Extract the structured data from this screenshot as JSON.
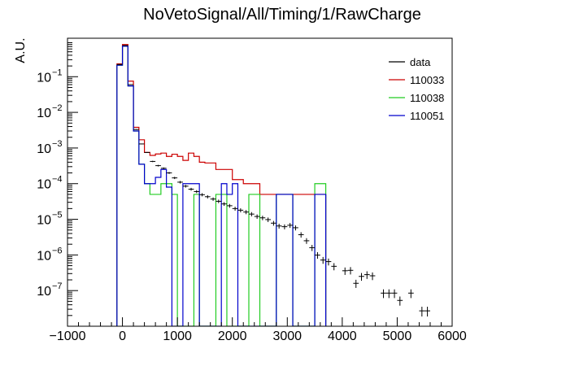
{
  "chart_data": {
    "type": "histogram",
    "title": "NoVetoSignal/All/Timing/1/RawCharge",
    "xlabel": "",
    "ylabel": "A.U.",
    "xlim": [
      -1000,
      6000
    ],
    "ylim": [
      1e-08,
      1.2
    ],
    "y_scale": "log",
    "x_ticks": [
      -1000,
      0,
      1000,
      2000,
      3000,
      4000,
      5000,
      6000
    ],
    "x_tick_labels": [
      "−1000",
      "0",
      "1000",
      "2000",
      "3000",
      "4000",
      "5000",
      "6000"
    ],
    "y_ticks": [
      1e-07,
      1e-06,
      1e-05,
      0.0001,
      0.001,
      0.01,
      0.1
    ],
    "y_tick_labels": [
      {
        "base": "10",
        "exp": "−7"
      },
      {
        "base": "10",
        "exp": "−6"
      },
      {
        "base": "10",
        "exp": "−5"
      },
      {
        "base": "10",
        "exp": "−4"
      },
      {
        "base": "10",
        "exp": "−3"
      },
      {
        "base": "10",
        "exp": "−2"
      },
      {
        "base": "10",
        "exp": "−1"
      }
    ],
    "grid": false,
    "legend_position": "top-right",
    "series": [
      {
        "name": "data",
        "color": "#000000",
        "style": "errorbar",
        "bin_width": 100,
        "points": [
          [
            -50,
            0.22
          ],
          [
            50,
            0.75
          ],
          [
            150,
            0.06
          ],
          [
            250,
            0.0033
          ],
          [
            350,
            0.0013
          ],
          [
            450,
            0.00075
          ],
          [
            550,
            0.00042
          ],
          [
            650,
            0.00032
          ],
          [
            750,
            0.00027
          ],
          [
            850,
            0.0002
          ],
          [
            950,
            0.000145
          ],
          [
            1050,
            0.00011
          ],
          [
            1150,
            8.5e-05
          ],
          [
            1250,
            7e-05
          ],
          [
            1350,
            6e-05
          ],
          [
            1450,
            4.9e-05
          ],
          [
            1550,
            4.3e-05
          ],
          [
            1650,
            3.7e-05
          ],
          [
            1750,
            3.2e-05
          ],
          [
            1850,
            2.7e-05
          ],
          [
            1950,
            2.4e-05
          ],
          [
            2050,
            2e-05
          ],
          [
            2150,
            1.8e-05
          ],
          [
            2250,
            1.6e-05
          ],
          [
            2350,
            1.4e-05
          ],
          [
            2450,
            1.2e-05
          ],
          [
            2550,
            1.1e-05
          ],
          [
            2650,
            9.8e-06
          ],
          [
            2750,
            7.8e-06
          ],
          [
            2850,
            6.5e-06
          ],
          [
            2950,
            6.2e-06
          ],
          [
            3050,
            6.8e-06
          ],
          [
            3150,
            5.8e-06
          ],
          [
            3250,
            3.7e-06
          ],
          [
            3350,
            2.5e-06
          ],
          [
            3450,
            1.6e-06
          ],
          [
            3550,
            9.9e-07
          ],
          [
            3650,
            7.2e-07
          ],
          [
            3750,
            6.5e-07
          ],
          [
            3850,
            4.8e-07
          ],
          [
            4050,
            3.6e-07
          ],
          [
            4150,
            3.7e-07
          ],
          [
            4250,
            1.6e-07
          ],
          [
            4350,
            2.5e-07
          ],
          [
            4450,
            2.8e-07
          ],
          [
            4550,
            2.6e-07
          ],
          [
            4750,
            8.5e-08
          ],
          [
            4850,
            8.5e-08
          ],
          [
            4950,
            8.5e-08
          ],
          [
            5050,
            5.3e-08
          ],
          [
            5250,
            8.5e-08
          ],
          [
            5450,
            2.7e-08
          ],
          [
            5550,
            2.7e-08
          ]
        ]
      },
      {
        "name": "110033",
        "color": "#cc0000",
        "style": "step",
        "bin_width": 100,
        "bin_start": -100,
        "values": [
          0.23,
          0.8,
          0.075,
          0.0038,
          0.0017,
          0.00075,
          0.00062,
          0.00068,
          0.00072,
          0.00058,
          0.00067,
          0.00058,
          0.00045,
          0.00072,
          0.00058,
          0.0004,
          0.00038,
          0.00038,
          0.00025,
          0.00025,
          0.00025,
          0.00013,
          0.00013,
          0.0001,
          0.0001,
          0.0001,
          5e-05,
          5e-05,
          5e-05,
          5e-05,
          5e-05,
          5e-05,
          5e-05,
          5e-05,
          5e-05,
          5e-05,
          5e-05,
          5e-05
        ]
      },
      {
        "name": "110038",
        "color": "#22cc22",
        "style": "step",
        "bin_width": 100,
        "bin_start": -100,
        "values": [
          0.21,
          0.72,
          0.055,
          0.003,
          0.00035,
          0.0001,
          5e-05,
          5e-05,
          0.0001,
          0.0001,
          5e-05,
          0.0,
          0.0,
          0.0,
          5e-05,
          0.0,
          0.0,
          0.0,
          5e-05,
          5e-05,
          0.0,
          0.0,
          0.0,
          0.0,
          5e-05,
          5e-05,
          0.0,
          0.0,
          0.0,
          5e-05,
          5e-05,
          5e-05,
          0.0,
          0.0,
          0.0,
          0.0,
          0.0001,
          0.0001
        ]
      },
      {
        "name": "110051",
        "color": "#0000cc",
        "style": "step",
        "bin_width": 100,
        "bin_start": -100,
        "values": [
          0.21,
          0.72,
          0.055,
          0.003,
          0.00035,
          0.0001,
          0.0001,
          0.00015,
          0.00025,
          8e-05,
          0.0,
          0.0,
          0.0001,
          0.0001,
          0.0001,
          0.0,
          0.0,
          0.0,
          0.0,
          0.0001,
          5e-05,
          0.0001,
          0.0,
          0.0,
          0.0,
          0.0,
          0.0,
          0.0,
          0.0,
          5e-05,
          5e-05,
          5e-05,
          0.0,
          0.0,
          0.0,
          0.0,
          5e-05,
          5e-05
        ]
      }
    ]
  }
}
